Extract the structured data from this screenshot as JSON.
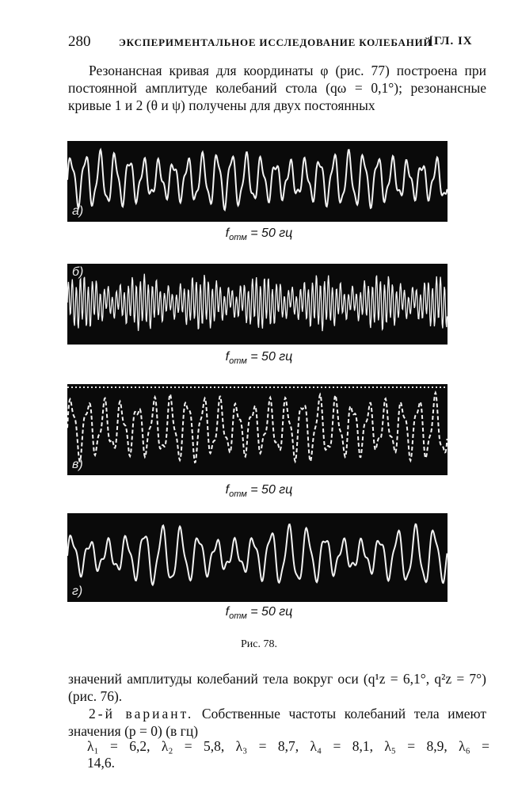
{
  "header": {
    "page_number": "280",
    "running_title": "ЭКСПЕРИМЕНТАЛЬНОЕ ИССЛЕДОВАНИЕ КОЛЕБАНИЙ",
    "chapter": "[ГЛ. IX"
  },
  "top_paragraph": "Резонансная кривая для координаты φ (рис. 77) построена при постоянной амплитуде колебаний стола (qω = 0,1°); резонансные кривые 1 и 2 (θ и ψ) получены для двух постоянных",
  "figure": {
    "panels": [
      {
        "letter": "а)",
        "label_f": "f",
        "label_sub": "отм",
        "label_value": " = 50 гц"
      },
      {
        "letter": "б)",
        "label_f": "f",
        "label_sub": "отм",
        "label_value": " = 50 гц"
      },
      {
        "letter": "в)",
        "label_f": "f",
        "label_sub": "отм",
        "label_value": " = 50 гц"
      },
      {
        "letter": "г)",
        "label_f": "f",
        "label_sub": "отм",
        "label_value": " = 50 гц"
      }
    ],
    "caption": "Рис. 78."
  },
  "bottom": {
    "line1": "значений амплитуды колебаний тела вокруг оси (q¹z = 6,1°, q²z = 7°) (рис. 76).",
    "variant_label": "2-й вариант.",
    "line2": " Собственные частоты колебаний тела имеют значения (p = 0) (в гц)",
    "equation": "λ₁ = 6,2,  λ₂ = 5,8,  λ₃ = 8,7,  λ₄ = 8,1,  λ₅ = 8,9,  λ₆ = 14,6."
  },
  "colors": {
    "ink": "#111111",
    "oscillogram_bg": "#0a0a0a",
    "trace": "#f2f2f2"
  }
}
